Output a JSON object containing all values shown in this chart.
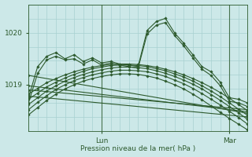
{
  "bg_color": "#cce8e8",
  "grid_color": "#a8d0d0",
  "line_color": "#2d5a2d",
  "marker_color": "#2d5a2d",
  "xlabel": "Pression niveau de la mer( hPa )",
  "xlabel_color": "#2d5a2d",
  "tick_color": "#2d5a2d",
  "ylim": [
    1018.1,
    1020.55
  ],
  "yticks": [
    1019.0,
    1020.0
  ],
  "xlim": [
    0,
    72
  ],
  "lun_x": 24,
  "mar_x": 66,
  "smooth_series": [
    [
      0,
      1018.82,
      3,
      1018.93,
      6,
      1019.04,
      9,
      1019.12,
      12,
      1019.19,
      15,
      1019.25,
      18,
      1019.3,
      21,
      1019.34,
      24,
      1019.37,
      27,
      1019.39,
      30,
      1019.4,
      33,
      1019.4,
      36,
      1019.39,
      39,
      1019.37,
      42,
      1019.34,
      45,
      1019.3,
      48,
      1019.25,
      51,
      1019.19,
      54,
      1019.12,
      57,
      1019.04,
      60,
      1018.95,
      63,
      1018.85,
      66,
      1018.74,
      69,
      1018.62,
      72,
      1018.5
    ],
    [
      0,
      1018.72,
      3,
      1018.84,
      6,
      1018.96,
      9,
      1019.05,
      12,
      1019.13,
      15,
      1019.2,
      18,
      1019.26,
      21,
      1019.31,
      24,
      1019.34,
      27,
      1019.37,
      30,
      1019.38,
      33,
      1019.38,
      36,
      1019.37,
      39,
      1019.35,
      42,
      1019.31,
      45,
      1019.27,
      48,
      1019.21,
      51,
      1019.15,
      54,
      1019.07,
      57,
      1018.98,
      60,
      1018.88,
      63,
      1018.77,
      66,
      1018.65,
      69,
      1018.53,
      72,
      1018.41
    ],
    [
      0,
      1018.62,
      3,
      1018.75,
      6,
      1018.88,
      9,
      1018.98,
      12,
      1019.07,
      15,
      1019.14,
      18,
      1019.2,
      21,
      1019.25,
      24,
      1019.29,
      27,
      1019.32,
      30,
      1019.34,
      33,
      1019.34,
      36,
      1019.33,
      39,
      1019.31,
      42,
      1019.27,
      45,
      1019.22,
      48,
      1019.16,
      51,
      1019.09,
      54,
      1019.01,
      57,
      1018.92,
      60,
      1018.81,
      63,
      1018.7,
      66,
      1018.58,
      69,
      1018.46,
      72,
      1018.33
    ],
    [
      0,
      1018.52,
      3,
      1018.66,
      6,
      1018.79,
      9,
      1018.91,
      12,
      1019.0,
      15,
      1019.08,
      18,
      1019.14,
      21,
      1019.19,
      24,
      1019.23,
      27,
      1019.26,
      30,
      1019.28,
      33,
      1019.28,
      36,
      1019.27,
      39,
      1019.25,
      42,
      1019.21,
      45,
      1019.16,
      48,
      1019.09,
      51,
      1019.02,
      54,
      1018.93,
      57,
      1018.83,
      60,
      1018.72,
      63,
      1018.61,
      66,
      1018.49,
      69,
      1018.37,
      72,
      1018.24
    ],
    [
      0,
      1018.42,
      3,
      1018.56,
      6,
      1018.7,
      9,
      1018.82,
      12,
      1018.92,
      15,
      1019.0,
      18,
      1019.07,
      21,
      1019.12,
      24,
      1019.16,
      27,
      1019.19,
      30,
      1019.21,
      33,
      1019.21,
      36,
      1019.2,
      39,
      1019.17,
      42,
      1019.13,
      45,
      1019.07,
      48,
      1019.0,
      51,
      1018.92,
      54,
      1018.82,
      57,
      1018.71,
      60,
      1018.59,
      63,
      1018.47,
      66,
      1018.35,
      69,
      1018.24,
      72,
      1018.13
    ]
  ],
  "diagonal_series": [
    [
      0,
      1019.18,
      72,
      1018.45
    ],
    [
      0,
      1018.98,
      72,
      1018.48
    ],
    [
      0,
      1018.9,
      72,
      1018.52
    ],
    [
      0,
      1018.78,
      72,
      1018.38
    ]
  ],
  "noisy_series": [
    [
      [
        0,
        1018.75
      ],
      [
        3,
        1019.35
      ],
      [
        6,
        1019.55
      ],
      [
        9,
        1019.62
      ],
      [
        12,
        1019.5
      ],
      [
        15,
        1019.58
      ],
      [
        18,
        1019.45
      ],
      [
        21,
        1019.52
      ],
      [
        24,
        1019.42
      ],
      [
        27,
        1019.45
      ],
      [
        30,
        1019.4
      ],
      [
        33,
        1019.38
      ],
      [
        36,
        1019.35
      ],
      [
        39,
        1020.05
      ],
      [
        42,
        1020.22
      ],
      [
        45,
        1020.28
      ],
      [
        48,
        1020.0
      ],
      [
        51,
        1019.8
      ],
      [
        54,
        1019.58
      ],
      [
        57,
        1019.35
      ],
      [
        60,
        1019.25
      ],
      [
        63,
        1019.05
      ],
      [
        66,
        1018.75
      ],
      [
        69,
        1018.72
      ],
      [
        72,
        1018.65
      ]
    ],
    [
      [
        0,
        1018.65
      ],
      [
        3,
        1019.22
      ],
      [
        6,
        1019.48
      ],
      [
        9,
        1019.55
      ],
      [
        12,
        1019.48
      ],
      [
        15,
        1019.5
      ],
      [
        18,
        1019.4
      ],
      [
        21,
        1019.48
      ],
      [
        24,
        1019.38
      ],
      [
        27,
        1019.42
      ],
      [
        30,
        1019.38
      ],
      [
        33,
        1019.35
      ],
      [
        36,
        1019.32
      ],
      [
        39,
        1019.98
      ],
      [
        42,
        1020.15
      ],
      [
        45,
        1020.2
      ],
      [
        48,
        1019.95
      ],
      [
        51,
        1019.75
      ],
      [
        54,
        1019.52
      ],
      [
        57,
        1019.3
      ],
      [
        60,
        1019.18
      ],
      [
        63,
        1018.98
      ],
      [
        66,
        1018.68
      ],
      [
        69,
        1018.65
      ],
      [
        72,
        1018.58
      ]
    ]
  ],
  "start_diag_series": [
    [
      [
        0,
        1019.18
      ],
      [
        6,
        1019.48
      ],
      [
        12,
        1019.52
      ],
      [
        18,
        1019.45
      ],
      [
        24,
        1019.38
      ],
      [
        72,
        1018.45
      ]
    ],
    [
      [
        0,
        1018.92
      ],
      [
        6,
        1019.28
      ],
      [
        12,
        1019.38
      ],
      [
        18,
        1019.35
      ],
      [
        24,
        1019.32
      ],
      [
        72,
        1018.48
      ]
    ]
  ]
}
